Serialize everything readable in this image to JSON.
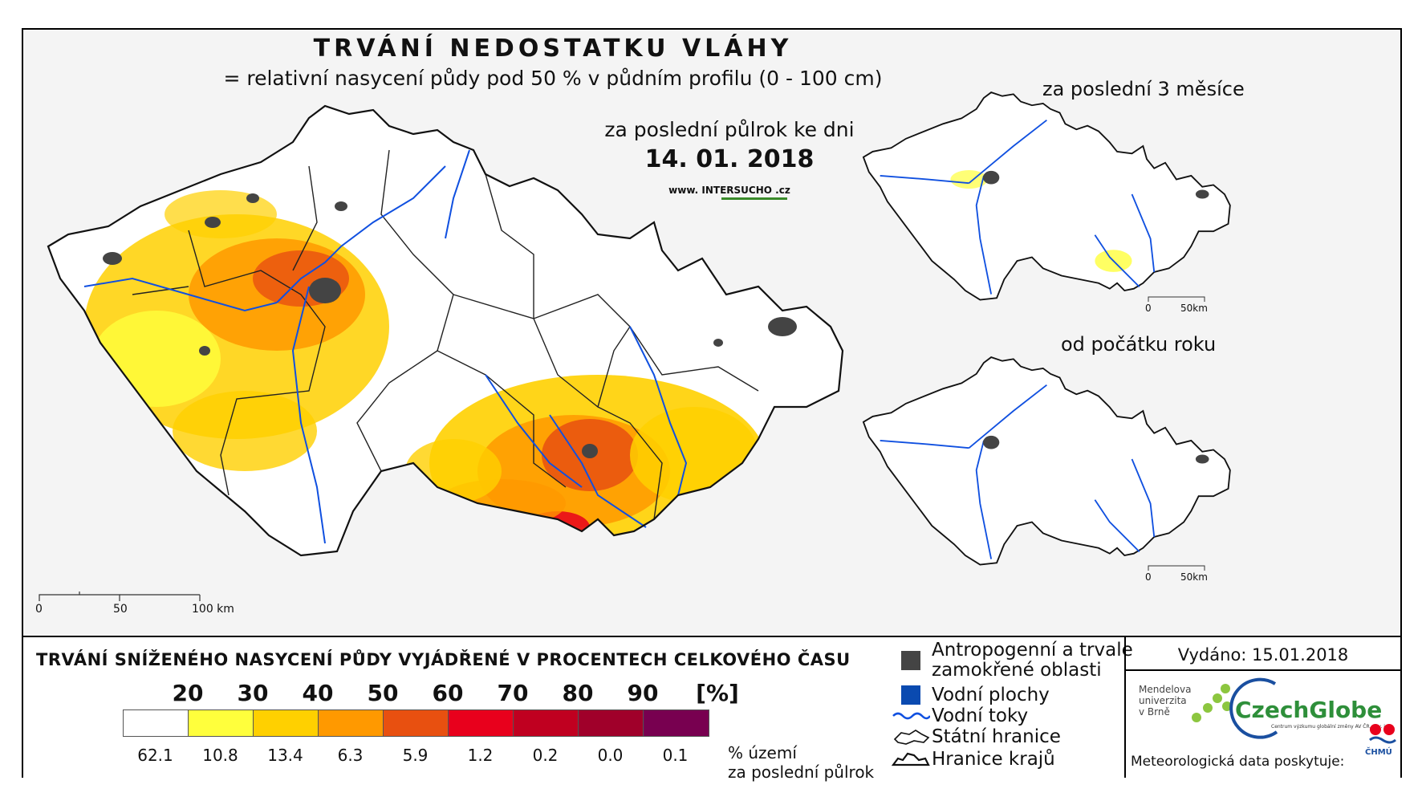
{
  "header": {
    "title": "TRVÁNÍ NEDOSTATKU VLÁHY",
    "subtitle": "= relativní nasycení půdy pod 50 % v půdním profilu (0 - 100 cm)",
    "period_label": "za poslední půlrok ke dni",
    "date": "14. 01. 2018",
    "url": "www. INTERSUCHO .cz"
  },
  "main_map": {
    "scale": [
      "0",
      "50",
      "100 km"
    ]
  },
  "insets": [
    {
      "label": "za poslední 3 měsíce",
      "scale": [
        "0",
        "50km"
      ]
    },
    {
      "label": "od počátku roku",
      "scale": [
        "0",
        "50km"
      ]
    }
  ],
  "legend": {
    "title": "TRVÁNÍ SNÍŽENÉHO NASYCENÍ PŮDY VYJÁDŘENÉ V PROCENTECH CELKOVÉHO ČASU",
    "ticks": [
      "20",
      "30",
      "40",
      "50",
      "60",
      "70",
      "80",
      "90",
      "[%]"
    ],
    "colors": [
      "#ffffff",
      "#ffff3c",
      "#ffd000",
      "#ff9900",
      "#e85010",
      "#e8001c",
      "#c00020",
      "#a0002a",
      "#780050"
    ],
    "percentages": [
      "62.1",
      "10.8",
      "13.4",
      "6.3",
      "5.9",
      "1.2",
      "0.2",
      "0.0",
      "0.1"
    ],
    "percent_note_1": "% území",
    "percent_note_2": "za poslední půlrok"
  },
  "symbols": {
    "anthropogenic_1": "Antropogenní a trvale",
    "anthropogenic_2": "zamokřené oblasti",
    "water_bodies": "Vodní plochy",
    "rivers": "Vodní toky",
    "state_border": "Státní hranice",
    "regions_border": "Hranice krajů",
    "anthropogenic_color": "#444444",
    "water_color": "#0a4ab0",
    "river_color": "#1050e0"
  },
  "credits": {
    "issued": "Vydáno: 15.01.2018",
    "mendel_1": "Mendelova",
    "mendel_2": "univerzita",
    "mendel_3": "v Brně",
    "czechglobe": "CzechGlobe",
    "czechglobe_sub": "Centrum výzkumu globální změny AV ČR, v. v. i.",
    "meteo": "Meteorologická data poskytuje:",
    "chmu": "ČHMÚ"
  }
}
